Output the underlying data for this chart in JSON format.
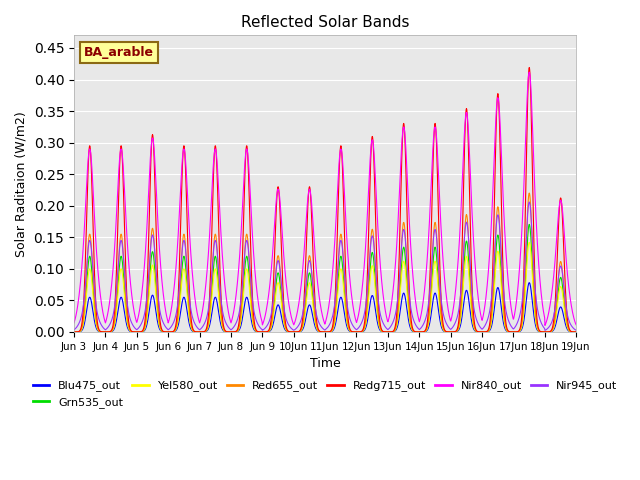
{
  "title": "Reflected Solar Bands",
  "xlabel": "Time",
  "ylabel": "Solar Raditaion (W/m2)",
  "annotation": "BA_arable",
  "annotation_color": "#8B0000",
  "annotation_bg": "#FFFF99",
  "annotation_border": "#8B6914",
  "series": [
    {
      "label": "Blu475_out",
      "color": "#0000FF",
      "narrow_scale": 0.055,
      "wide_scale": 0.0
    },
    {
      "label": "Grn535_out",
      "color": "#00DD00",
      "narrow_scale": 0.12,
      "wide_scale": 0.0
    },
    {
      "label": "Yel580_out",
      "color": "#FFFF00",
      "narrow_scale": 0.1,
      "wide_scale": 0.0
    },
    {
      "label": "Red655_out",
      "color": "#FF8800",
      "narrow_scale": 0.155,
      "wide_scale": 0.0
    },
    {
      "label": "Redg715_out",
      "color": "#FF0000",
      "narrow_scale": 0.295,
      "wide_scale": 0.0
    },
    {
      "label": "Nir840_out",
      "color": "#FF00FF",
      "narrow_scale": 0.1,
      "wide_scale": 0.19
    },
    {
      "label": "Nir945_out",
      "color": "#9933FF",
      "narrow_scale": 0.1,
      "wide_scale": 0.045
    }
  ],
  "ylim": [
    0,
    0.47
  ],
  "yticks": [
    0.0,
    0.05,
    0.1,
    0.15,
    0.2,
    0.25,
    0.3,
    0.35,
    0.4,
    0.45
  ],
  "bg_color": "#E8E8E8",
  "fig_bg": "#FFFFFF",
  "n_days": 16,
  "start_day": 3,
  "points_per_day": 100,
  "narrow_sigma": 0.1,
  "wide_sigma": 0.22,
  "day_peak_scales": [
    1.0,
    1.0,
    1.06,
    1.0,
    1.0,
    1.0,
    0.78,
    0.78,
    1.0,
    1.05,
    1.12,
    1.12,
    1.2,
    1.28,
    1.42,
    0.72
  ],
  "legend_ncol": 6,
  "legend_fontsize": 8
}
